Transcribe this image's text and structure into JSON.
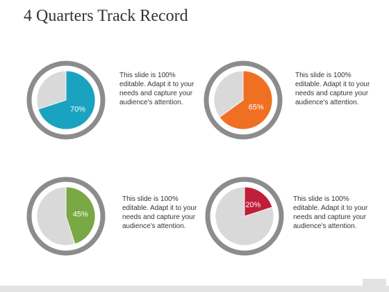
{
  "slide": {
    "title": "4 Quarters Track Record"
  },
  "chart_data": [
    {
      "type": "pie",
      "slices": [
        {
          "label": "70%",
          "value": 70,
          "color": "#1aa3c0"
        },
        {
          "label": "",
          "value": 30,
          "color": "#d9d9d9"
        }
      ],
      "description": "This slide is 100% editable. Adapt it to your needs and capture your audience's attention."
    },
    {
      "type": "pie",
      "slices": [
        {
          "label": "65%",
          "value": 65,
          "color": "#f07023"
        },
        {
          "label": "",
          "value": 35,
          "color": "#d9d9d9"
        }
      ],
      "description": "This slide is 100% editable. Adapt it to your needs and capture your audience's attention."
    },
    {
      "type": "pie",
      "slices": [
        {
          "label": "45%",
          "value": 45,
          "color": "#7aa845"
        },
        {
          "label": "",
          "value": 55,
          "color": "#d9d9d9"
        }
      ],
      "description": "This slide is 100% editable. Adapt it to your needs and capture your audience's attention."
    },
    {
      "type": "pie",
      "slices": [
        {
          "label": "20%",
          "value": 20,
          "color": "#bf1e3a"
        },
        {
          "label": "",
          "value": 80,
          "color": "#d9d9d9"
        }
      ],
      "description": "This slide is 100% editable. Adapt it to your needs and capture your audience's attention."
    }
  ],
  "colors": {
    "ring": "#8c8c8c",
    "remainder": "#d9d9d9",
    "label_text": "#ffffff"
  }
}
